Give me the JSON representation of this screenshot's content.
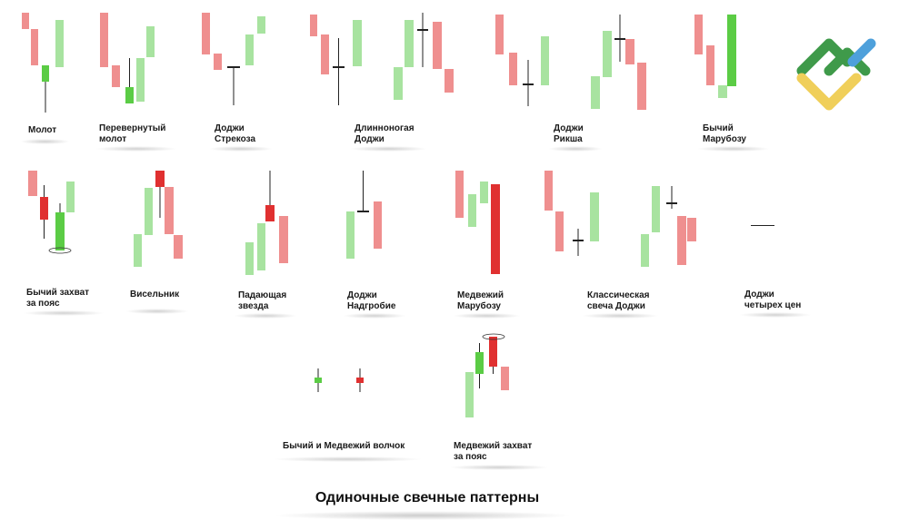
{
  "title": "Одиночные свечные паттерны",
  "colors": {
    "bull_light": "#a8e3a0",
    "bull_dark": "#5bcc45",
    "bear_light": "#ef8f8f",
    "bear_dark": "#e03030",
    "wick": "#222222"
  },
  "logo": {
    "icon": "fx-logo-icon",
    "green": "#3f9a4a",
    "yellow": "#f0cf5a",
    "blue": "#4ea0db"
  },
  "patterns": [
    {
      "id": "hammer",
      "label": "Молот"
    },
    {
      "id": "inverted-hammer",
      "label": "Перевернутый\nмолот"
    },
    {
      "id": "dragonfly-doji",
      "label": "Доджи\nСтрекоза"
    },
    {
      "id": "long-legged-doji",
      "label": "Длинноногая\nДоджи"
    },
    {
      "id": "rickshaw-doji",
      "label": "Доджи\nРикша"
    },
    {
      "id": "bullish-marubozu",
      "label": "Бычий\nМарубозу"
    },
    {
      "id": "bullish-belt-hold",
      "label": "Бычий захват\nза пояс"
    },
    {
      "id": "hanging-man",
      "label": "Висельник"
    },
    {
      "id": "shooting-star",
      "label": "Падающая\nзвезда"
    },
    {
      "id": "gravestone-doji",
      "label": "Доджи\nНадгробие"
    },
    {
      "id": "bearish-marubozu",
      "label": "Медвежий\nМарубозу"
    },
    {
      "id": "classic-doji",
      "label": "Классическая\nсвеча Доджи"
    },
    {
      "id": "four-price-doji",
      "label": "Доджи\nчетырех цен"
    },
    {
      "id": "spinning-tops",
      "label": "Бычий и Медвежий волчок"
    },
    {
      "id": "bearish-belt-hold",
      "label": "Медвежий захват\nза пояс"
    }
  ]
}
